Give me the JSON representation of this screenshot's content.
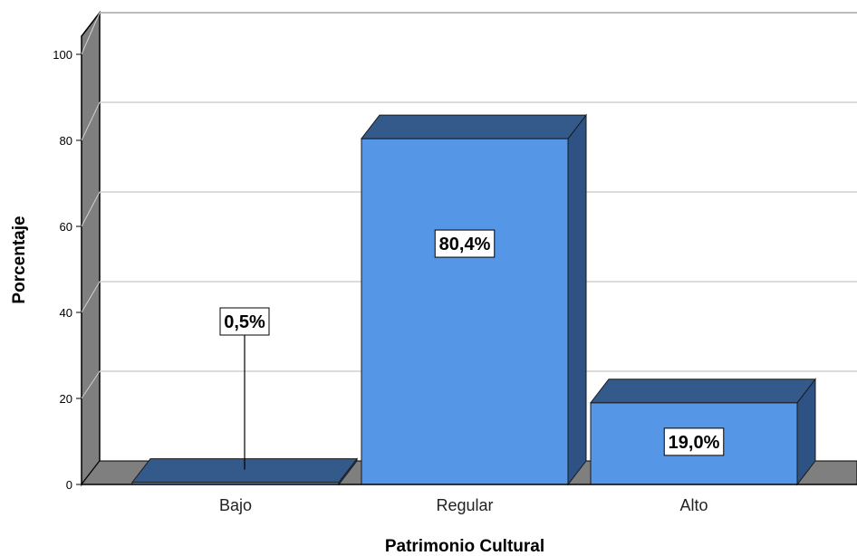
{
  "chart_data": {
    "type": "bar",
    "title": "",
    "xlabel": "Patrimonio Cultural",
    "ylabel": "Porcentaje",
    "categories": [
      "Bajo",
      "Regular",
      "Alto"
    ],
    "values": [
      0.5,
      80.4,
      19.0
    ],
    "data_labels": [
      "0,5%",
      "80,4%",
      "19,0%"
    ],
    "ylim": [
      0,
      100
    ],
    "yticks": [
      "0",
      "20",
      "40",
      "60",
      "80",
      "100"
    ],
    "grid": true,
    "legend": "none",
    "style": "3d",
    "colors": {
      "bar_front": "#5596E6",
      "bar_top": "#345A8C",
      "bar_side": "#2E5283",
      "back_wall": "#FFFFFF",
      "side_wall": "#7F7F7F",
      "floor": "#7F7F7F",
      "grid": "#D0D0D0"
    }
  }
}
